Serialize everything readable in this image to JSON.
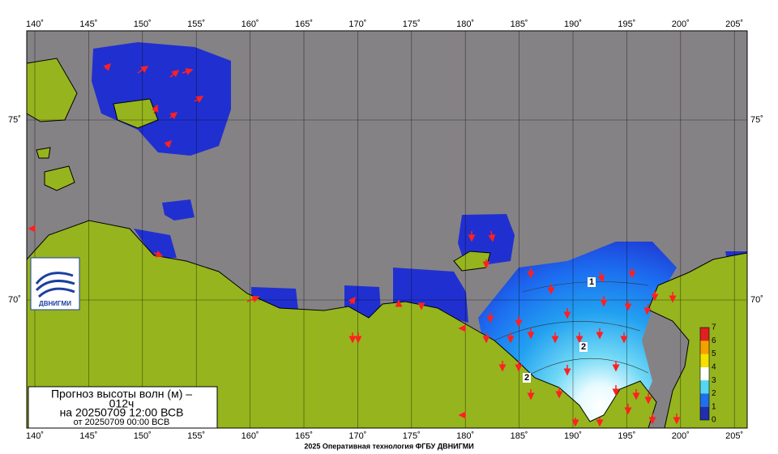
{
  "map": {
    "lon_labels": [
      "140˚",
      "145˚",
      "150˚",
      "155˚",
      "160˚",
      "165˚",
      "170˚",
      "175˚",
      "180˚",
      "185˚",
      "190˚",
      "195˚",
      "200˚",
      "205˚"
    ],
    "lat_labels": [
      "75˚",
      "70˚"
    ],
    "title": {
      "line1": "Прогноз высоты волн (м) –",
      "line2": "012ч",
      "line3": "на 20250709 12:00 ВСВ",
      "line4": "от 20250709 00:00 ВСВ"
    },
    "logo": "ДВНИГМИ",
    "colorbar_labels": [
      "0",
      "1",
      "2",
      "3",
      "4",
      "5",
      "6",
      "7"
    ],
    "contour_labels": [
      "1",
      "2",
      "2"
    ],
    "footer": "2025 Оперативная технология ФГБУ ДВНИГМИ"
  }
}
